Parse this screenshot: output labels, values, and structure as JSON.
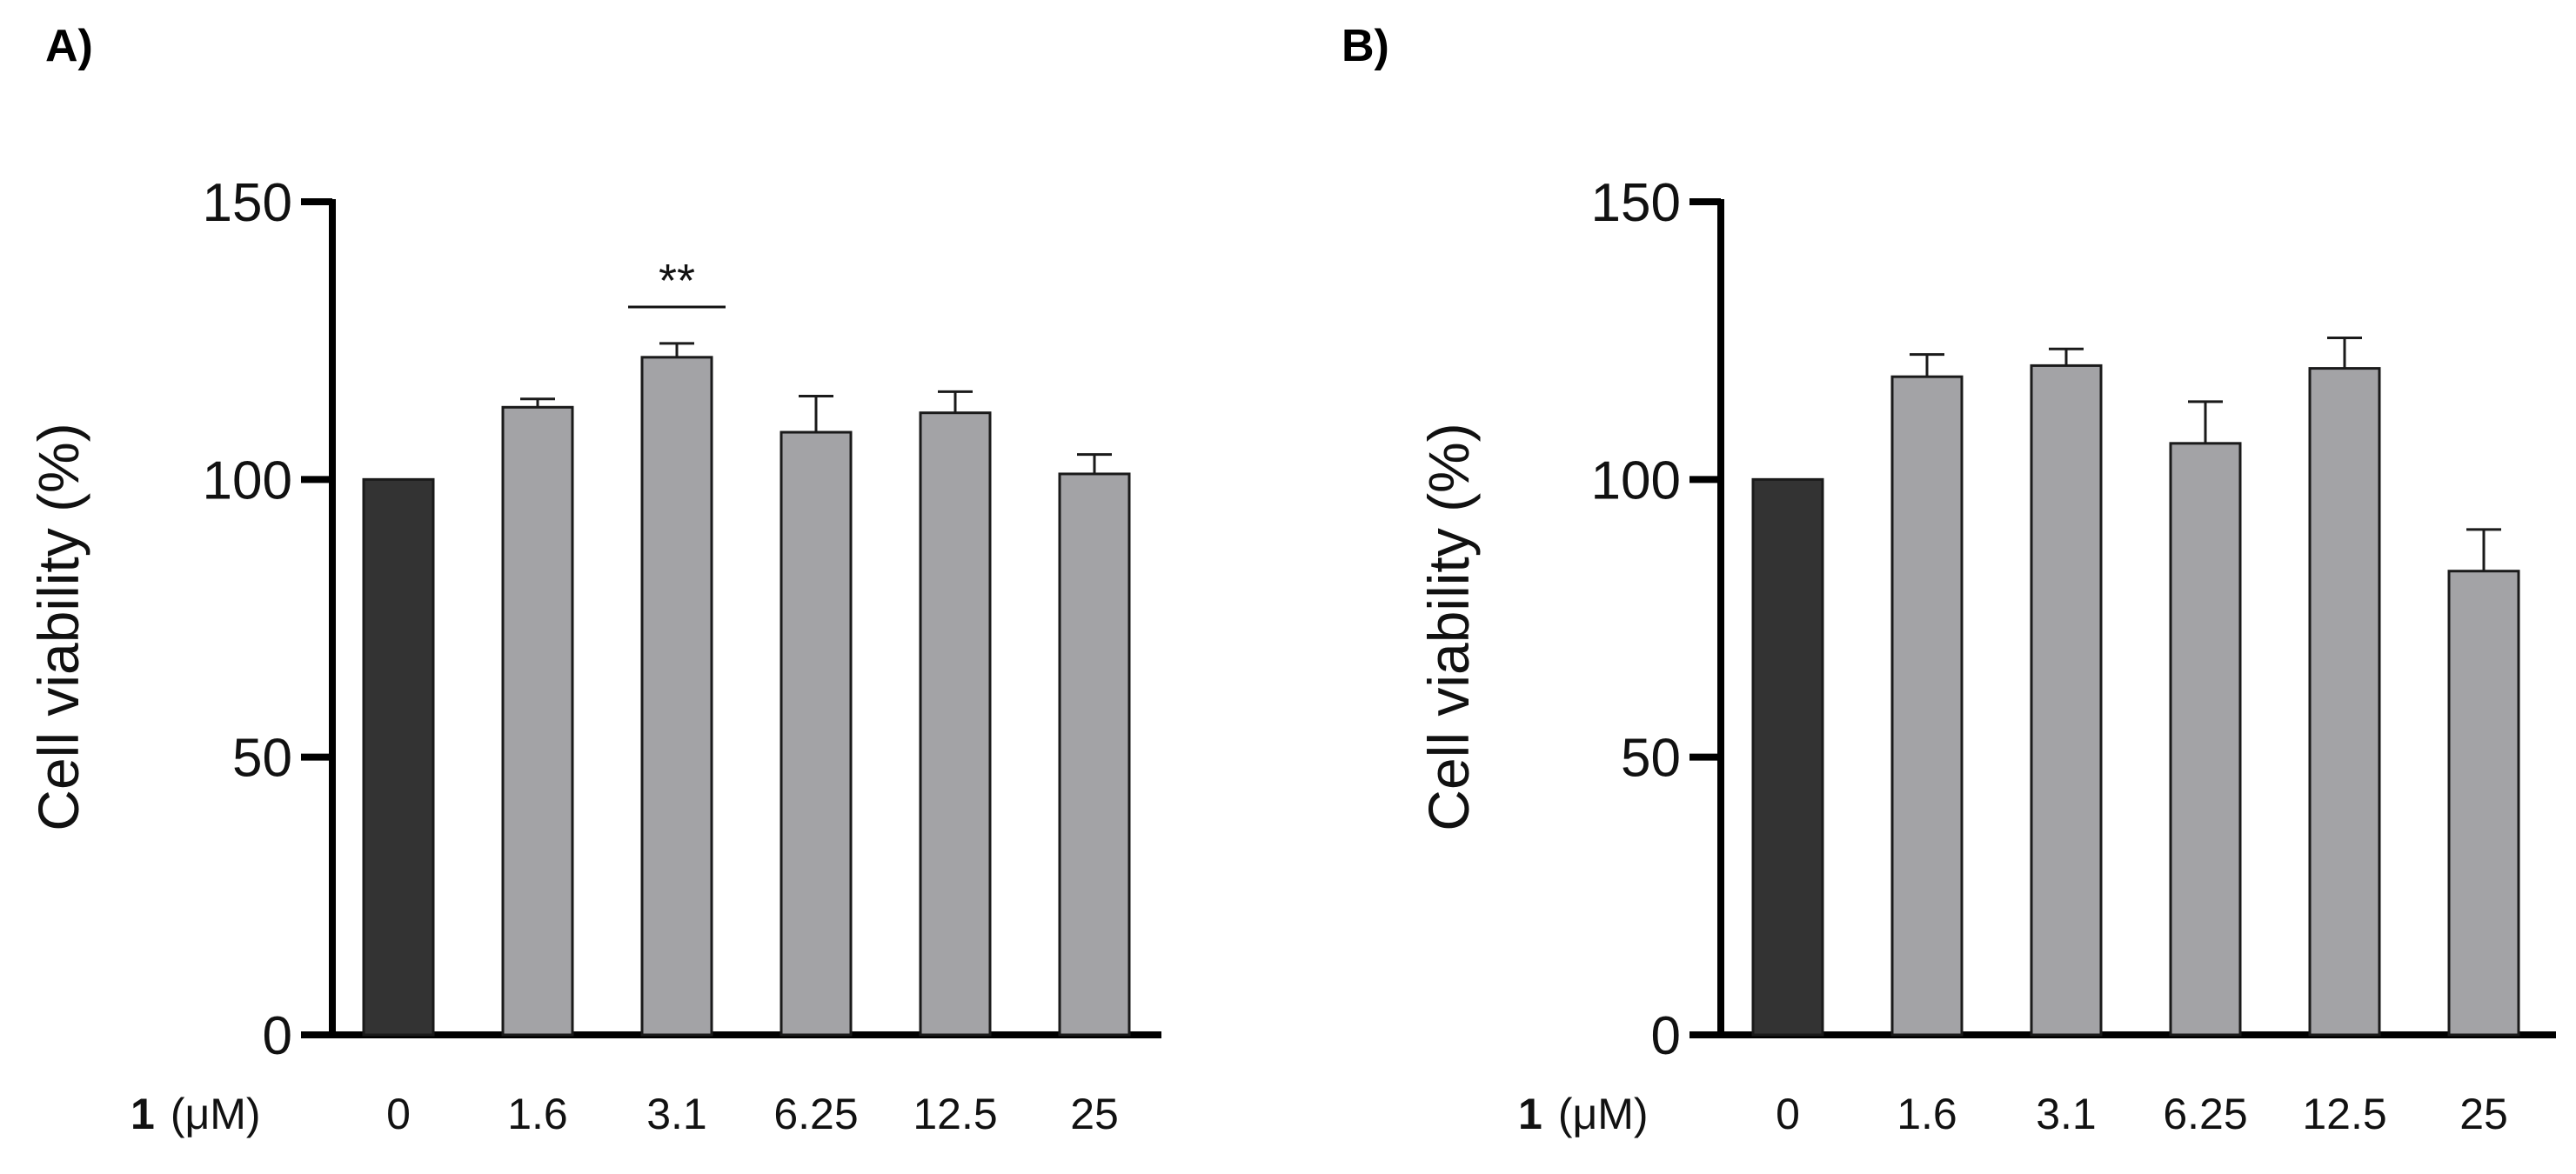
{
  "chart_data": [
    {
      "type": "bar",
      "panel_label": "A)",
      "ylabel": "Cell viability (%)",
      "xlabel_bold": "1",
      "xlabel_unit": "(μM)",
      "categories": [
        "0",
        "1.6",
        "3.1",
        "6.25",
        "12.5",
        "25"
      ],
      "values": [
        100,
        113,
        122,
        108.5,
        112,
        101
      ],
      "errors": [
        0,
        1.5,
        2.5,
        6.5,
        3.8,
        3.5
      ],
      "bar_colors": [
        "#333333",
        "#a3a3a6",
        "#a3a3a6",
        "#a3a3a6",
        "#a3a3a6",
        "#a3a3a6"
      ],
      "ylim": [
        0,
        150
      ],
      "yticks": [
        "0",
        "50",
        "100",
        "150"
      ],
      "significance": {
        "category_index": 2,
        "label": "**"
      }
    },
    {
      "type": "bar",
      "panel_label": "B)",
      "ylabel": "Cell viability (%)",
      "xlabel_bold": "1",
      "xlabel_unit": "(μM)",
      "categories": [
        "0",
        "1.6",
        "3.1",
        "6.25",
        "12.5",
        "25"
      ],
      "values": [
        100,
        118.5,
        120.5,
        106.5,
        120,
        83.5
      ],
      "errors": [
        0,
        4,
        3,
        7.5,
        5.5,
        7.5
      ],
      "bar_colors": [
        "#333333",
        "#a3a3a6",
        "#a3a3a6",
        "#a3a3a6",
        "#a3a3a6",
        "#a3a3a6"
      ],
      "ylim": [
        0,
        150
      ],
      "yticks": [
        "0",
        "50",
        "100",
        "150"
      ],
      "significance": null
    }
  ]
}
